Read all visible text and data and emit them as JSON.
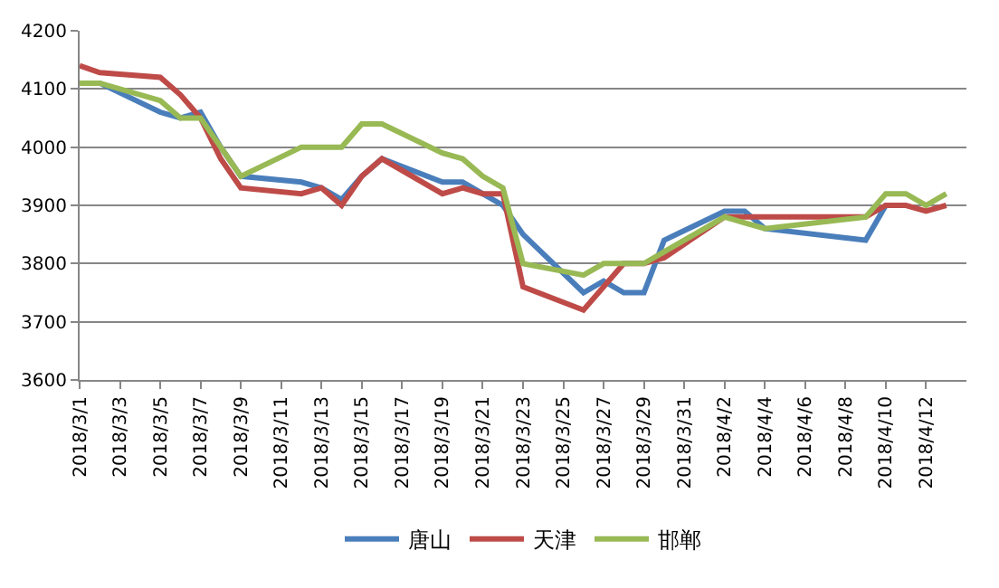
{
  "chart_data": {
    "type": "line",
    "x": [
      "2018-03-01",
      "2018-03-02",
      "2018-03-05",
      "2018-03-06",
      "2018-03-07",
      "2018-03-08",
      "2018-03-09",
      "2018-03-12",
      "2018-03-13",
      "2018-03-14",
      "2018-03-15",
      "2018-03-16",
      "2018-03-19",
      "2018-03-20",
      "2018-03-21",
      "2018-03-22",
      "2018-03-23",
      "2018-03-26",
      "2018-03-27",
      "2018-03-28",
      "2018-03-29",
      "2018-03-30",
      "2018-04-02",
      "2018-04-03",
      "2018-04-04",
      "2018-04-09",
      "2018-04-10",
      "2018-04-11",
      "2018-04-12",
      "2018-04-13"
    ],
    "series": [
      {
        "name": "唐山",
        "color": "#4a7ebb",
        "values": [
          4110,
          4110,
          4060,
          4050,
          4060,
          4000,
          3950,
          3940,
          3930,
          3910,
          3950,
          3980,
          3940,
          3940,
          3920,
          3900,
          3850,
          3750,
          3770,
          3750,
          3750,
          3840,
          3890,
          3890,
          3860,
          3840,
          3900,
          3900,
          null,
          null
        ]
      },
      {
        "name": "天津",
        "color": "#be4b48",
        "values": [
          4140,
          4128,
          4120,
          4090,
          4050,
          3980,
          3930,
          3920,
          3930,
          3900,
          3950,
          3980,
          3920,
          3930,
          3920,
          3920,
          3760,
          3720,
          3760,
          3800,
          3800,
          3810,
          3880,
          3880,
          3880,
          3880,
          3900,
          3900,
          3890,
          3900
        ]
      },
      {
        "name": "邯郸",
        "color": "#98b954",
        "values": [
          4110,
          4110,
          4080,
          4050,
          4050,
          4000,
          3950,
          4000,
          4000,
          4000,
          4040,
          4040,
          3990,
          3980,
          3950,
          3930,
          3800,
          3780,
          3800,
          3800,
          3800,
          3820,
          3880,
          3870,
          3860,
          3880,
          3920,
          3920,
          3900,
          3920
        ]
      }
    ],
    "xlim": [
      "2018-03-01",
      "2018-04-14"
    ],
    "xticks": [
      {
        "value": "2018-03-01",
        "label": "2018/3/1"
      },
      {
        "value": "2018-03-03",
        "label": "2018/3/3"
      },
      {
        "value": "2018-03-05",
        "label": "2018/3/5"
      },
      {
        "value": "2018-03-07",
        "label": "2018/3/7"
      },
      {
        "value": "2018-03-09",
        "label": "2018/3/9"
      },
      {
        "value": "2018-03-11",
        "label": "2018/3/11"
      },
      {
        "value": "2018-03-13",
        "label": "2018/3/13"
      },
      {
        "value": "2018-03-15",
        "label": "2018/3/15"
      },
      {
        "value": "2018-03-17",
        "label": "2018/3/17"
      },
      {
        "value": "2018-03-19",
        "label": "2018/3/19"
      },
      {
        "value": "2018-03-21",
        "label": "2018/3/21"
      },
      {
        "value": "2018-03-23",
        "label": "2018/3/23"
      },
      {
        "value": "2018-03-25",
        "label": "2018/3/25"
      },
      {
        "value": "2018-03-27",
        "label": "2018/3/27"
      },
      {
        "value": "2018-03-29",
        "label": "2018/3/29"
      },
      {
        "value": "2018-03-31",
        "label": "2018/3/31"
      },
      {
        "value": "2018-04-02",
        "label": "2018/4/2"
      },
      {
        "value": "2018-04-04",
        "label": "2018/4/4"
      },
      {
        "value": "2018-04-06",
        "label": "2018/4/6"
      },
      {
        "value": "2018-04-08",
        "label": "2018/4/8"
      },
      {
        "value": "2018-04-10",
        "label": "2018/4/10"
      },
      {
        "value": "2018-04-12",
        "label": "2018/4/12"
      }
    ],
    "ylim": [
      3600,
      4200
    ],
    "yticks": [
      3600,
      3700,
      3800,
      3900,
      4000,
      4100,
      4200
    ],
    "grid": "y",
    "legend": "bottom",
    "marker": "none",
    "line_style": "solid"
  }
}
